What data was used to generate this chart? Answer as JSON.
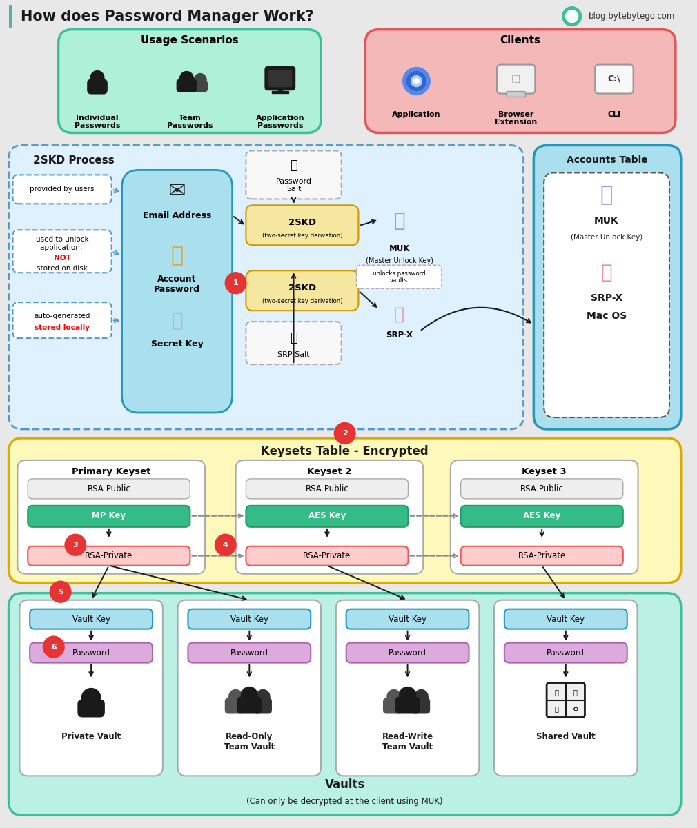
{
  "title": "How does Password Manager Work?",
  "subtitle": "blog.bytebytego.com",
  "bg_color": "#e8e8e8",
  "title_color": "#1a1a1a",
  "accent_bar_color": "#4db8a0",
  "usage_box": {
    "label": "Usage Scenarios",
    "bg": "#aff0d8",
    "border": "#3dbf99"
  },
  "clients_box": {
    "label": "Clients",
    "bg": "#f5b8b8",
    "border": "#e05555"
  },
  "skd_box": {
    "label": "2SKD Process",
    "bg": "#dff0ff",
    "border": "#5599cc"
  },
  "accounts_box": {
    "label": "Accounts Table",
    "bg": "#aadfee",
    "border": "#2299bb"
  },
  "keysets_box": {
    "label": "Keysets Table - Encrypted",
    "bg": "#fff8bb",
    "border": "#ddaa00"
  },
  "vaults_box": {
    "label": "Vaults",
    "sublabel": "(Can only be decrypted at the client using MUK)",
    "bg": "#bbf0e4",
    "border": "#3dbf99"
  },
  "step_circle": "#e63333",
  "step_text": "#ffffff",
  "email_box_bg": "#aadfee",
  "email_box_border": "#2299bb",
  "skd_yellow_bg": "#f5e6a0",
  "skd_yellow_border": "#cc9900",
  "salt_box_bg": "#f8f8f8",
  "salt_box_border": "#aaaaaa",
  "rsa_pub_bg": "#eeeeee",
  "rsa_pub_border": "#aaaaaa",
  "mp_key_bg": "#33bb88",
  "mp_key_border": "#229966",
  "aes_key_bg": "#33bb88",
  "aes_key_border": "#229966",
  "rsa_priv_bg": "#ffcccc",
  "rsa_priv_border": "#ee5555",
  "vault_key_bg": "#aadfee",
  "vault_key_border": "#2299bb",
  "password_box_bg": "#ddaadd",
  "password_box_border": "#aa66aa",
  "note_box_bg": "#ffffff",
  "note_box_border": "#5599cc",
  "unlocks_box_border": "#aaaaaa",
  "muk_color": "#8899dd",
  "srpx_color": "#ee8899",
  "key_gold": "#ddaa44",
  "key_silver": "#aabbcc"
}
